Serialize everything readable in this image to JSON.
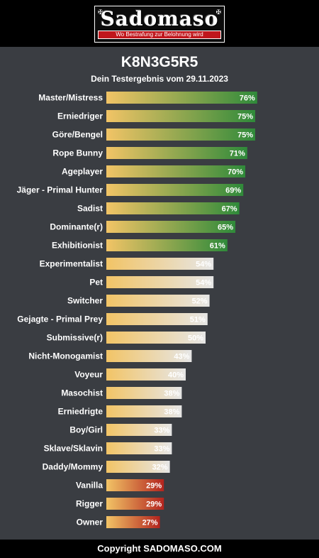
{
  "header": {
    "logo_text": "Sadomaso",
    "logo_tagline": "Wo Bestrafung zur Belohnung wird",
    "logo_corner_glyph": "✠"
  },
  "page": {
    "title": "K8N3G5R5",
    "subtitle": "Dein Testergebnis vom 29.11.2023"
  },
  "colors": {
    "background": "#3a3d42",
    "bar_start": "#f2c466",
    "high_end": "#2f8a3a",
    "mid_end": "#e6e6e6",
    "low_end": "#b3241e"
  },
  "chart_data": {
    "type": "bar",
    "orientation": "horizontal",
    "xlim": [
      0,
      100
    ],
    "unit": "%",
    "categories": [
      "Master/Mistress",
      "Erniedriger",
      "Göre/Bengel",
      "Rope Bunny",
      "Ageplayer",
      "Jäger - Primal Hunter",
      "Sadist",
      "Dominante(r)",
      "Exhibitionist",
      "Experimentalist",
      "Pet",
      "Switcher",
      "Gejagte - Primal Prey",
      "Submissive(r)",
      "Nicht-Monogamist",
      "Voyeur",
      "Masochist",
      "Erniedrigte",
      "Boy/Girl",
      "Sklave/Sklavin",
      "Daddy/Mommy",
      "Vanilla",
      "Rigger",
      "Owner"
    ],
    "values": [
      76,
      75,
      75,
      71,
      70,
      69,
      67,
      65,
      61,
      54,
      54,
      52,
      51,
      50,
      43,
      40,
      38,
      38,
      33,
      33,
      32,
      29,
      29,
      27
    ],
    "labels": [
      "76%",
      "75%",
      "75%",
      "71%",
      "70%",
      "69%",
      "67%",
      "65%",
      "61%",
      "54%",
      "54%",
      "52%",
      "51%",
      "50%",
      "43%",
      "40%",
      "38%",
      "38%",
      "33%",
      "33%",
      "32%",
      "29%",
      "29%",
      "27%"
    ]
  },
  "footer": {
    "copyright": "Copyright SADOMASO.COM"
  }
}
